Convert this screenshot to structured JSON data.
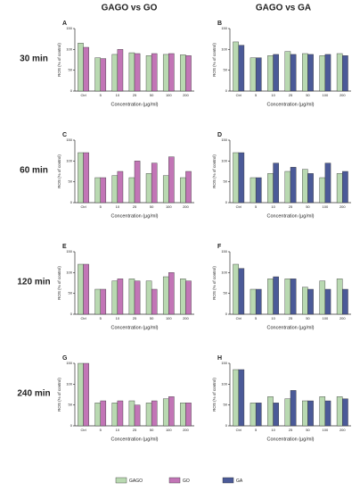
{
  "column_titles": [
    "GAGO vs GO",
    "GAGO vs GA"
  ],
  "row_labels": [
    "30 min",
    "60 min",
    "120 min",
    "240 min"
  ],
  "legend": [
    {
      "name": "GAGO",
      "color": "#b9d9b1"
    },
    {
      "name": "GO",
      "color": "#c275b6"
    },
    {
      "name": "GA",
      "color": "#4b5a98"
    }
  ],
  "chart_data": [
    {
      "type": "bar",
      "title": "A",
      "xlabel": "Concentration (µg/ml)",
      "ylabel": "ROS (% of control)",
      "categories": [
        "Ctrl",
        "5",
        "10",
        "25",
        "50",
        "100",
        "200"
      ],
      "ylim": [
        0,
        150
      ],
      "yticks": [
        0,
        50,
        100,
        150
      ],
      "series": [
        {
          "color": "#b9d9b1",
          "values": [
            115,
            80,
            88,
            92,
            85,
            88,
            87
          ]
        },
        {
          "color": "#c275b6",
          "values": [
            105,
            78,
            100,
            90,
            90,
            90,
            85
          ]
        }
      ]
    },
    {
      "type": "bar",
      "title": "B",
      "xlabel": "Concentration (µg/ml)",
      "ylabel": "ROS (% of control)",
      "categories": [
        "Ctrl",
        "5",
        "10",
        "25",
        "50",
        "100",
        "200"
      ],
      "ylim": [
        0,
        150
      ],
      "yticks": [
        0,
        50,
        100,
        150
      ],
      "series": [
        {
          "color": "#b9d9b1",
          "values": [
            118,
            80,
            85,
            95,
            90,
            85,
            90
          ]
        },
        {
          "color": "#4b5a98",
          "values": [
            110,
            80,
            88,
            88,
            88,
            88,
            85
          ]
        }
      ]
    },
    {
      "type": "bar",
      "title": "C",
      "xlabel": "Concentration (µg/ml)",
      "ylabel": "ROS (% of control)",
      "categories": [
        "Ctrl",
        "5",
        "10",
        "25",
        "50",
        "100",
        "200"
      ],
      "ylim": [
        0,
        150
      ],
      "yticks": [
        0,
        50,
        100,
        150
      ],
      "series": [
        {
          "color": "#b9d9b1",
          "values": [
            120,
            60,
            65,
            60,
            70,
            65,
            60
          ]
        },
        {
          "color": "#c275b6",
          "values": [
            120,
            60,
            75,
            100,
            95,
            110,
            75
          ]
        }
      ]
    },
    {
      "type": "bar",
      "title": "D",
      "xlabel": "Concentration (µg/ml)",
      "ylabel": "ROS (% of control)",
      "categories": [
        "Ctrl",
        "5",
        "10",
        "25",
        "50",
        "100",
        "200"
      ],
      "ylim": [
        0,
        150
      ],
      "yticks": [
        0,
        50,
        100,
        150
      ],
      "series": [
        {
          "color": "#b9d9b1",
          "values": [
            120,
            60,
            70,
            75,
            80,
            60,
            70
          ]
        },
        {
          "color": "#4b5a98",
          "values": [
            120,
            60,
            95,
            85,
            70,
            95,
            75
          ]
        }
      ]
    },
    {
      "type": "bar",
      "title": "E",
      "xlabel": "Concentration (µg/ml)",
      "ylabel": "ROS (% of control)",
      "categories": [
        "Ctrl",
        "5",
        "10",
        "25",
        "50",
        "100",
        "200"
      ],
      "ylim": [
        0,
        150
      ],
      "yticks": [
        0,
        50,
        100,
        150
      ],
      "series": [
        {
          "color": "#b9d9b1",
          "values": [
            120,
            60,
            80,
            85,
            80,
            90,
            85
          ]
        },
        {
          "color": "#c275b6",
          "values": [
            120,
            60,
            85,
            80,
            60,
            100,
            80
          ]
        }
      ]
    },
    {
      "type": "bar",
      "title": "F",
      "xlabel": "Concentration (µg/ml)",
      "ylabel": "ROS (% of control)",
      "categories": [
        "Ctrl",
        "5",
        "10",
        "25",
        "50",
        "100",
        "200"
      ],
      "ylim": [
        0,
        150
      ],
      "yticks": [
        0,
        50,
        100,
        150
      ],
      "series": [
        {
          "color": "#b9d9b1",
          "values": [
            120,
            60,
            85,
            85,
            65,
            80,
            85
          ]
        },
        {
          "color": "#4b5a98",
          "values": [
            110,
            60,
            90,
            85,
            60,
            60,
            60
          ]
        }
      ]
    },
    {
      "type": "bar",
      "title": "G",
      "xlabel": "Concentration (µg/ml)",
      "ylabel": "ROS (% of control)",
      "categories": [
        "Ctrl",
        "5",
        "10",
        "25",
        "50",
        "100",
        "200"
      ],
      "ylim": [
        0,
        150
      ],
      "yticks": [
        0,
        50,
        100,
        150
      ],
      "series": [
        {
          "color": "#b9d9b1",
          "values": [
            150,
            55,
            55,
            60,
            55,
            65,
            55
          ]
        },
        {
          "color": "#c275b6",
          "values": [
            150,
            60,
            60,
            50,
            60,
            70,
            55
          ]
        }
      ]
    },
    {
      "type": "bar",
      "title": "H",
      "xlabel": "Concentration (µg/ml)",
      "ylabel": "ROS (% of control)",
      "categories": [
        "Ctrl",
        "5",
        "10",
        "25",
        "50",
        "100",
        "200"
      ],
      "ylim": [
        0,
        150
      ],
      "yticks": [
        0,
        50,
        100,
        150
      ],
      "series": [
        {
          "color": "#b9d9b1",
          "values": [
            135,
            55,
            70,
            65,
            60,
            70,
            70
          ]
        },
        {
          "color": "#4b5a98",
          "values": [
            135,
            55,
            55,
            85,
            60,
            60,
            65
          ]
        }
      ]
    }
  ]
}
